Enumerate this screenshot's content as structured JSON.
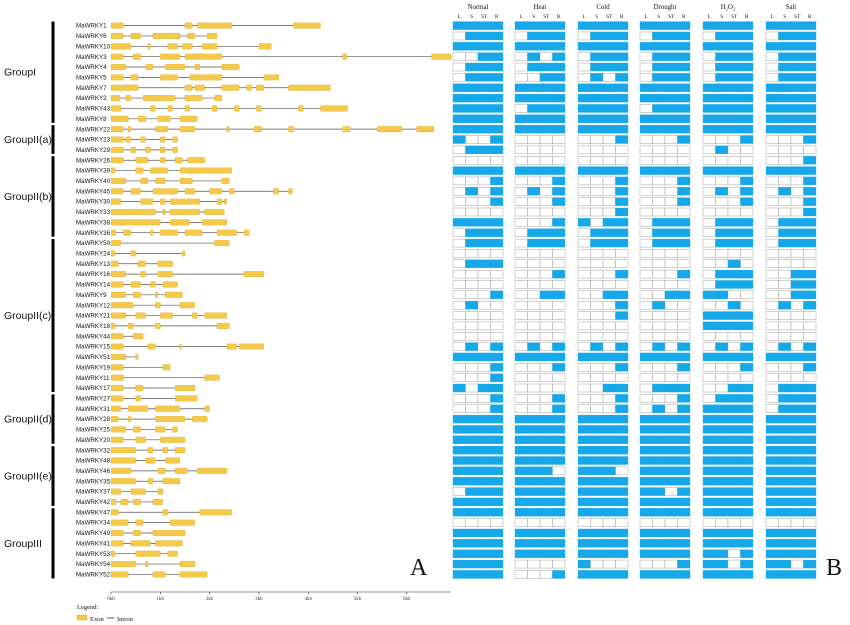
{
  "genes": [
    {
      "name": "MaWRKY1",
      "exons": [
        [
          0,
          2.5
        ],
        [
          15,
          16.5
        ],
        [
          17.5,
          24.5
        ],
        [
          37,
          42.5
        ]
      ],
      "len": 42.5,
      "exp": "111111111111111111111111"
    },
    {
      "name": "MaWRKY6",
      "exons": [
        [
          0,
          2.5
        ],
        [
          4,
          6
        ],
        [
          8.5,
          14
        ],
        [
          15.5,
          17
        ],
        [
          19.5,
          21.5
        ]
      ],
      "len": 21.5,
      "exp": "011101110111011101110111"
    },
    {
      "name": "MaWRKY10",
      "exons": [
        [
          0,
          4
        ],
        [
          7.5,
          8
        ],
        [
          11.5,
          13.5
        ],
        [
          14.5,
          16.5
        ],
        [
          18.5,
          21.5
        ],
        [
          30,
          32.5
        ]
      ],
      "len": 32.5,
      "exp": "111111111111111111111111"
    },
    {
      "name": "MaWRKY3",
      "exons": [
        [
          0,
          2.5
        ],
        [
          4.5,
          6
        ],
        [
          10,
          14
        ],
        [
          15,
          22.5
        ],
        [
          47,
          47.8
        ],
        [
          65,
          69
        ]
      ],
      "len": 69,
      "exp": "001101010111011101110111"
    },
    {
      "name": "MaWRKY4",
      "exons": [
        [
          0,
          3
        ],
        [
          7,
          8.5
        ],
        [
          11,
          15
        ],
        [
          17,
          18
        ],
        [
          22.5,
          26
        ]
      ],
      "len": 26,
      "exp": "011101110111011101110111"
    },
    {
      "name": "MaWRKY5",
      "exons": [
        [
          0,
          2.5
        ],
        [
          4,
          5.5
        ],
        [
          10,
          13.5
        ],
        [
          16,
          22.5
        ],
        [
          31,
          34
        ]
      ],
      "len": 34,
      "exp": "011100110101011101110111"
    },
    {
      "name": "MaWRKY7",
      "exons": [
        [
          0,
          5.5
        ],
        [
          15,
          16.5
        ],
        [
          17,
          19
        ],
        [
          22.5,
          26
        ],
        [
          27.5,
          28.5
        ],
        [
          29.5,
          31
        ],
        [
          36,
          44.5
        ]
      ],
      "len": 44.5,
      "exp": "111111111111111111111111"
    },
    {
      "name": "MaWRKY2",
      "exons": [
        [
          0,
          1.8
        ],
        [
          3,
          4
        ],
        [
          6.5,
          13
        ],
        [
          15,
          18.5
        ],
        [
          21,
          22.5
        ]
      ],
      "len": 22.5,
      "exp": "111111111111111111111111"
    },
    {
      "name": "MaWRKY43",
      "exons": [
        [
          0,
          2
        ],
        [
          8,
          9
        ],
        [
          11.5,
          12.5
        ],
        [
          15,
          16
        ],
        [
          20.5,
          21.5
        ],
        [
          25,
          26
        ],
        [
          29.5,
          30.5
        ],
        [
          38,
          39
        ],
        [
          42.5,
          48
        ]
      ],
      "len": 48,
      "exp": "111101111111011111111111"
    },
    {
      "name": "MaWRKY8",
      "exons": [
        [
          0,
          3.5
        ],
        [
          5.5,
          7
        ],
        [
          9.5,
          12
        ],
        [
          14,
          17.5
        ]
      ],
      "len": 17.5,
      "exp": "111111111111111111111111"
    },
    {
      "name": "MaWRKY22",
      "exons": [
        [
          0,
          2.5
        ],
        [
          3.5,
          4
        ],
        [
          9,
          11.5
        ],
        [
          14,
          17
        ],
        [
          23.5,
          24
        ],
        [
          29,
          30.5
        ],
        [
          36,
          37
        ],
        [
          47,
          48.5
        ],
        [
          54,
          59
        ],
        [
          62,
          65.5
        ]
      ],
      "len": 65.5,
      "exp": "111111111111111111111111"
    },
    {
      "name": "MaWRKY23",
      "exons": [
        [
          0,
          2.5
        ],
        [
          3,
          4
        ],
        [
          6,
          7
        ],
        [
          10,
          11
        ],
        [
          12.5,
          13.5
        ]
      ],
      "len": 13.5,
      "exp": "100100000001000100010001"
    },
    {
      "name": "MaWRKY29",
      "exons": [
        [
          0,
          2.5
        ],
        [
          4,
          5
        ],
        [
          7,
          8
        ],
        [
          10,
          11
        ],
        [
          12.5,
          13.5
        ]
      ],
      "len": 13.5,
      "exp": "011100000000000001000000"
    },
    {
      "name": "MaWRKY26",
      "exons": [
        [
          0,
          2.5
        ],
        [
          5,
          7.5
        ],
        [
          10,
          11
        ],
        [
          13,
          14.5
        ],
        [
          15.5,
          19
        ]
      ],
      "len": 19,
      "exp": "000000000000000000000001"
    },
    {
      "name": "MaWRKY39",
      "exons": [
        [
          0,
          0.8
        ],
        [
          5,
          6.5
        ],
        [
          8,
          11.5
        ],
        [
          14,
          24.5
        ]
      ],
      "len": 24.5,
      "exp": "111111111111111111111111"
    },
    {
      "name": "MaWRKY40",
      "exons": [
        [
          0,
          3
        ],
        [
          6,
          7.5
        ],
        [
          9,
          11
        ],
        [
          14,
          16.5
        ],
        [
          22.5,
          24
        ]
      ],
      "len": 24,
      "exp": "000100010001000100010001"
    },
    {
      "name": "MaWRKY45",
      "exons": [
        [
          0,
          2.5
        ],
        [
          4,
          6
        ],
        [
          8.5,
          13.5
        ],
        [
          15,
          17
        ],
        [
          20,
          22.5
        ],
        [
          24,
          25
        ],
        [
          33,
          34
        ],
        [
          36,
          36.8
        ]
      ],
      "len": 36.8,
      "exp": "010101010001000101010101"
    },
    {
      "name": "MaWRKY30",
      "exons": [
        [
          0,
          2
        ],
        [
          6,
          8.5
        ],
        [
          10,
          11
        ],
        [
          12,
          18
        ],
        [
          21.5,
          22.5
        ],
        [
          23,
          23.5
        ]
      ],
      "len": 23.5,
      "exp": "000100010001000100010001"
    },
    {
      "name": "MaWRKY33",
      "exons": [
        [
          0,
          9
        ],
        [
          10.5,
          11
        ],
        [
          12,
          18
        ],
        [
          19,
          23
        ]
      ],
      "len": 23,
      "exp": "000000000001000000000001"
    },
    {
      "name": "MaWRKY38",
      "exons": [
        [
          0,
          10
        ],
        [
          12,
          16
        ],
        [
          18.5,
          23.5
        ]
      ],
      "len": 23.5,
      "exp": "111100011011011101110111"
    },
    {
      "name": "MaWRKY36",
      "exons": [
        [
          0,
          1
        ],
        [
          2.5,
          4
        ],
        [
          8,
          8.5
        ],
        [
          10,
          13.5
        ],
        [
          15,
          18.5
        ],
        [
          21.5,
          25.5
        ],
        [
          27,
          28
        ]
      ],
      "len": 28,
      "exp": "011101110111011101110111"
    },
    {
      "name": "MaWRKY50",
      "exons": [
        [
          0,
          2
        ],
        [
          21,
          24
        ]
      ],
      "len": 24,
      "exp": "011101110111011101110111"
    },
    {
      "name": "MaWRKY24",
      "exons": [
        [
          0,
          0.8
        ],
        [
          4,
          5
        ],
        [
          14.5,
          15
        ]
      ],
      "len": 15,
      "exp": "000000000000000000000000"
    },
    {
      "name": "MaWRKY13",
      "exons": [
        [
          0,
          1.5
        ],
        [
          5.5,
          7
        ],
        [
          9.5,
          12.5
        ]
      ],
      "len": 12.5,
      "exp": "011100000000000000100000"
    },
    {
      "name": "MaWRKY16",
      "exons": [
        [
          0,
          3
        ],
        [
          6,
          7
        ],
        [
          9.5,
          12.5
        ],
        [
          27,
          31
        ]
      ],
      "len": 31,
      "exp": "000000010001000101110011"
    },
    {
      "name": "MaWRKY14",
      "exons": [
        [
          0,
          2.5
        ],
        [
          4,
          6
        ],
        [
          8,
          9
        ],
        [
          10.5,
          13.5
        ]
      ],
      "len": 13.5,
      "exp": "000000000000000001110011"
    },
    {
      "name": "MaWRKY9",
      "exons": [
        [
          0,
          3
        ],
        [
          4.5,
          6
        ],
        [
          9,
          9.5
        ],
        [
          11,
          14.5
        ]
      ],
      "len": 14.5,
      "exp": "000100110011001111000011"
    },
    {
      "name": "MaWRKY12",
      "exons": [
        [
          0,
          4.5
        ],
        [
          9,
          10
        ],
        [
          14,
          17
        ]
      ],
      "len": 17,
      "exp": "010000000001010000100101"
    },
    {
      "name": "MaWRKY21",
      "exons": [
        [
          0,
          3
        ],
        [
          5,
          7
        ],
        [
          10,
          12.5
        ],
        [
          16.5,
          17.5
        ],
        [
          19,
          23.5
        ]
      ],
      "len": 23.5,
      "exp": "000000000001000011110000"
    },
    {
      "name": "MaWRKY18",
      "exons": [
        [
          0,
          0.8
        ],
        [
          3.5,
          4.5
        ],
        [
          9,
          10
        ],
        [
          21.5,
          24
        ]
      ],
      "len": 24,
      "exp": "000000000000000011110000"
    },
    {
      "name": "MaWRKY44",
      "exons": [
        [
          0,
          2.5
        ],
        [
          4.5,
          6.5
        ]
      ],
      "len": 6.5,
      "exp": "000000000000000000000000"
    },
    {
      "name": "MaWRKY15",
      "exons": [
        [
          0,
          2.5
        ],
        [
          7.5,
          9
        ],
        [
          14,
          14.2
        ],
        [
          23.5,
          25.5
        ],
        [
          26,
          31
        ]
      ],
      "len": 31,
      "exp": "010101010101010101010101"
    },
    {
      "name": "MaWRKY51",
      "exons": [
        [
          0,
          3
        ],
        [
          5,
          5.5
        ]
      ],
      "len": 5.5,
      "exp": "111111111111111111111111"
    },
    {
      "name": "MaWRKY19",
      "exons": [
        [
          0,
          2.5
        ],
        [
          10.5,
          12
        ]
      ],
      "len": 12,
      "exp": "000100010001000100010001"
    },
    {
      "name": "MaWRKY11",
      "exons": [
        [
          0,
          2.5
        ],
        [
          19,
          22
        ]
      ],
      "len": 22,
      "exp": "000100000000000000000000"
    },
    {
      "name": "MaWRKY17",
      "exons": [
        [
          0,
          2.5
        ],
        [
          5,
          6.5
        ],
        [
          13,
          17
        ]
      ],
      "len": 17,
      "exp": "101100000011011100110111"
    },
    {
      "name": "MaWRKY27",
      "exons": [
        [
          0,
          2.5
        ],
        [
          5,
          6
        ],
        [
          13,
          17.5
        ]
      ],
      "len": 17.5,
      "exp": "000100010001000101110111"
    },
    {
      "name": "MaWRKY31",
      "exons": [
        [
          0,
          2
        ],
        [
          3.5,
          7.5
        ],
        [
          9,
          14
        ],
        [
          19,
          20
        ]
      ],
      "len": 20,
      "exp": "000100010001010111110111"
    },
    {
      "name": "MaWRKY28",
      "exons": [
        [
          0,
          1.5
        ],
        [
          3.5,
          4
        ],
        [
          9,
          15
        ],
        [
          16.5,
          19.5
        ]
      ],
      "len": 19.5,
      "exp": "111111111111111111111111"
    },
    {
      "name": "MaWRKY25",
      "exons": [
        [
          0,
          3
        ],
        [
          4.5,
          6
        ],
        [
          9,
          11
        ],
        [
          12.5,
          13.5
        ]
      ],
      "len": 13.5,
      "exp": "111111111111111111111111"
    },
    {
      "name": "MaWRKY20",
      "exons": [
        [
          0,
          2.5
        ],
        [
          5,
          7
        ],
        [
          10,
          15
        ]
      ],
      "len": 15,
      "exp": "111111111111111111111111"
    },
    {
      "name": "MaWRKY32",
      "exons": [
        [
          0,
          5
        ],
        [
          7.5,
          8.5
        ],
        [
          10.5,
          11.5
        ],
        [
          13,
          15
        ]
      ],
      "len": 15,
      "exp": "111111111111111111111111"
    },
    {
      "name": "MaWRKY48",
      "exons": [
        [
          0,
          5
        ],
        [
          7,
          9
        ],
        [
          11,
          14
        ]
      ],
      "len": 14,
      "exp": "111111111111111111111111"
    },
    {
      "name": "MaWRKY46",
      "exons": [
        [
          0,
          4
        ],
        [
          9.5,
          11
        ],
        [
          13,
          15.5
        ],
        [
          17.5,
          23.5
        ]
      ],
      "len": 23.5,
      "exp": "111111101110111111111111"
    },
    {
      "name": "MaWRKY35",
      "exons": [
        [
          0,
          5
        ],
        [
          7.5,
          8.5
        ],
        [
          10.5,
          14
        ]
      ],
      "len": 14,
      "exp": "111111111111111111111111"
    },
    {
      "name": "MaWRKY37",
      "exons": [
        [
          0,
          2
        ],
        [
          4,
          7
        ],
        [
          9.5,
          10.5
        ]
      ],
      "len": 10.5,
      "exp": "011111111111110111111111"
    },
    {
      "name": "MaWRKY42",
      "exons": [
        [
          0,
          1
        ],
        [
          2,
          3.5
        ],
        [
          4.5,
          6
        ],
        [
          8.5,
          10.5
        ]
      ],
      "len": 10.5,
      "exp": "111111111111111111111111"
    },
    {
      "name": "MaWRKY47",
      "exons": [
        [
          0,
          1.5
        ],
        [
          10.5,
          11.5
        ],
        [
          18,
          24.5
        ]
      ],
      "len": 24.5,
      "exp": "111111111111111111111111"
    },
    {
      "name": "MaWRKY34",
      "exons": [
        [
          0,
          3.5
        ],
        [
          5,
          6.5
        ],
        [
          12,
          17
        ]
      ],
      "len": 17,
      "exp": "000000000000000000000000"
    },
    {
      "name": "MaWRKY49",
      "exons": [
        [
          0,
          2.5
        ],
        [
          4.5,
          6
        ],
        [
          8.5,
          15
        ]
      ],
      "len": 15,
      "exp": "111111111111111111111111"
    },
    {
      "name": "MaWRKY41",
      "exons": [
        [
          0,
          2.5
        ],
        [
          4,
          8
        ],
        [
          9,
          14.5
        ]
      ],
      "len": 14.5,
      "exp": "111111111111111111111111"
    },
    {
      "name": "MaWRKY53",
      "exons": [
        [
          0,
          0.8
        ],
        [
          5,
          10
        ],
        [
          11.5,
          13.5
        ]
      ],
      "len": 13.5,
      "exp": "111111111111111111011111"
    },
    {
      "name": "MaWRKY54",
      "exons": [
        [
          0,
          5
        ],
        [
          7,
          7.5
        ],
        [
          14,
          17
        ]
      ],
      "len": 17,
      "exp": "111100001000000111011101"
    },
    {
      "name": "MaWRKY52",
      "exons": [
        [
          0,
          3.5
        ],
        [
          8.5,
          11
        ],
        [
          14,
          19.5
        ]
      ],
      "len": 19.5,
      "exp": "111100011111111111111111"
    }
  ],
  "groups": [
    {
      "label": "GroupI",
      "from": 0,
      "to": 9
    },
    {
      "label": "GroupII(a)",
      "from": 10,
      "to": 12
    },
    {
      "label": "GroupII(b)",
      "from": 13,
      "to": 20
    },
    {
      "label": "GroupII(c)",
      "from": 21,
      "to": 35
    },
    {
      "label": "GroupII(d)",
      "from": 36,
      "to": 40
    },
    {
      "label": "GroupII(e)",
      "from": 41,
      "to": 46
    },
    {
      "label": "GroupIII",
      "from": 47,
      "to": 53
    }
  ],
  "axis_ticks": [
    "0kb",
    "1kb",
    "2kb",
    "3kb",
    "4kb",
    "5kb",
    "6kb"
  ],
  "conditions": [
    "Normal",
    "Heat",
    "Cold",
    "Drought",
    "H₂O₂",
    "Salt"
  ],
  "tissues": [
    "L",
    "S",
    "ST",
    "R"
  ],
  "legend": {
    "title": "Legend:",
    "exon": "Exon",
    "intron": "Intron"
  },
  "panels": {
    "left": "A",
    "right": "B"
  },
  "colors": {
    "exon": "#f5c94a",
    "exon_edge": "#d9a826",
    "intron": "#555555",
    "expressed": "#16a8e8",
    "cell_border": "#9a9a9a",
    "group_bar": "#000000"
  }
}
